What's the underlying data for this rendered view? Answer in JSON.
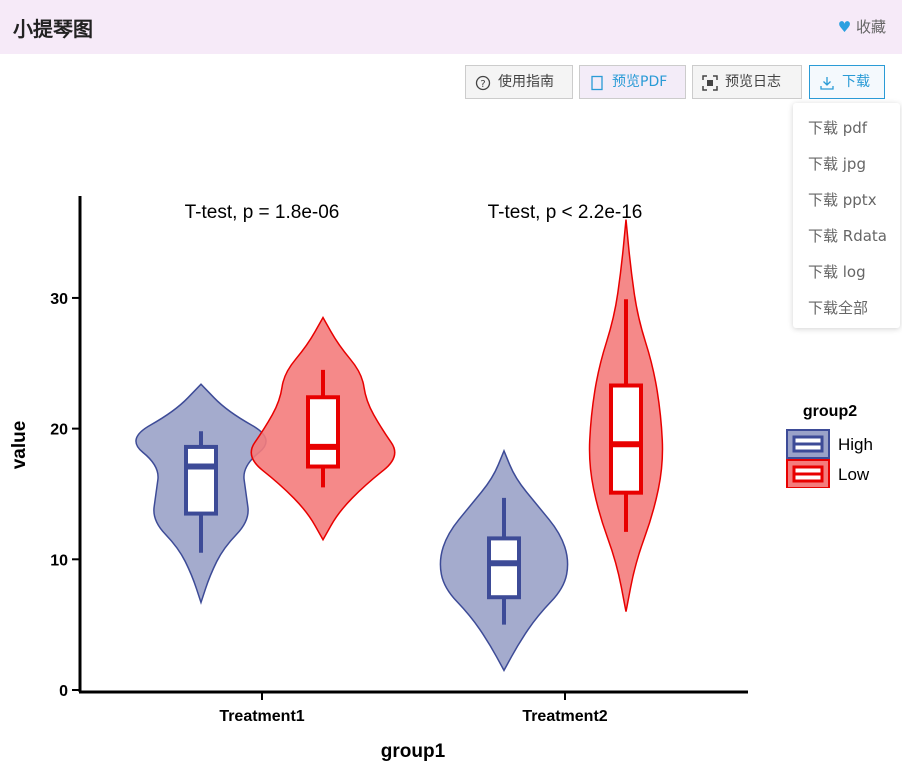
{
  "header": {
    "title": "小提琴图",
    "favorite": "收藏"
  },
  "toolbar": {
    "buttons": [
      "使用指南",
      "预览PDF",
      "预览日志",
      "下载"
    ]
  },
  "download_menu": {
    "items": [
      "下载 pdf",
      "下载 jpg",
      "下载 pptx",
      "下载 Rdata",
      "下载 log",
      "下载全部"
    ]
  },
  "chart_data": {
    "type": "violin",
    "x_label": "group1",
    "y_label": "value",
    "categories": [
      "Treatment1",
      "Treatment2"
    ],
    "annotations": [
      "T-test, p = 1.8e-06",
      "T-test, p < 2.2e-16"
    ],
    "ylim": [
      0,
      37.8
    ],
    "yticks": [
      0,
      10,
      20,
      30
    ],
    "legend_title": "group2",
    "legend_position": "right",
    "series": [
      {
        "name": "High",
        "color": "#3d4b97",
        "fill": "#9aa2c8",
        "violins": [
          {
            "min": 6.7,
            "max": 23.4,
            "density": [
              0,
              0.12,
              0.3,
              0.65,
              0.6,
              0.55,
              1.0,
              0.35,
              0
            ],
            "whisker_low": 10.5,
            "q1": 13.5,
            "median": 17.1,
            "q3": 18.6,
            "whisker_high": 19.8
          },
          {
            "min": 1.5,
            "max": 18.3,
            "density": [
              0,
              0.2,
              0.45,
              0.8,
              0.87,
              0.75,
              0.45,
              0.15,
              0
            ],
            "whisker_low": 5.0,
            "q1": 7.1,
            "median": 9.7,
            "q3": 11.6,
            "whisker_high": 14.7
          }
        ]
      },
      {
        "name": "Low",
        "color": "#e80000",
        "fill": "#f47c7c",
        "violins": [
          {
            "min": 11.5,
            "max": 28.5,
            "density": [
              0,
              0.2,
              0.55,
              1.0,
              0.75,
              0.55,
              0.5,
              0.2,
              0
            ],
            "whisker_low": 15.5,
            "q1": 17.1,
            "median": 18.6,
            "q3": 22.4,
            "whisker_high": 24.5
          },
          {
            "min": 6.0,
            "max": 36.0,
            "density": [
              0,
              0.12,
              0.35,
              0.48,
              0.45,
              0.35,
              0.15,
              0.06,
              0
            ],
            "whisker_low": 12.1,
            "q1": 15.1,
            "median": 18.8,
            "q3": 23.3,
            "whisker_high": 29.9
          }
        ]
      }
    ]
  }
}
